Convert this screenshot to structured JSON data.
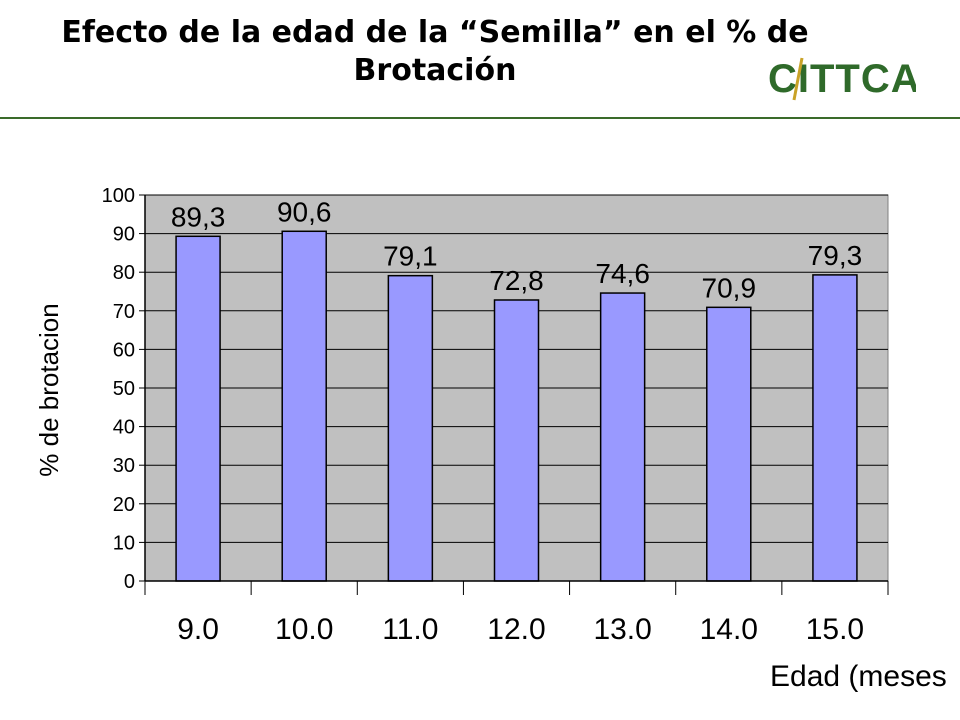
{
  "slide": {
    "title_line1": "Efecto de la edad de la “Semilla” en el % de",
    "title_line2": "Brotación",
    "logo_text": "CITTCA",
    "logo_colors": {
      "text": "#2f6a2a",
      "accent": "#c9a227"
    }
  },
  "chart_data": {
    "type": "bar",
    "categories": [
      "9.0",
      "10.0",
      "11.0",
      "12.0",
      "13.0",
      "14.0",
      "15.0"
    ],
    "values": [
      89.3,
      90.6,
      79.1,
      72.8,
      74.6,
      70.9,
      79.3
    ],
    "data_labels": [
      "89,3",
      "90,6",
      "79,1",
      "72,8",
      "74,6",
      "70,9",
      "79,3"
    ],
    "xlabel": "Edad (meses",
    "ylabel": "% de brotacion",
    "ylim": [
      0,
      100
    ],
    "yticks": [
      0,
      10,
      20,
      30,
      40,
      50,
      60,
      70,
      80,
      90,
      100
    ],
    "grid": true,
    "colors": {
      "bar": "#9999ff",
      "plot_bg": "#c0c0c0"
    }
  }
}
